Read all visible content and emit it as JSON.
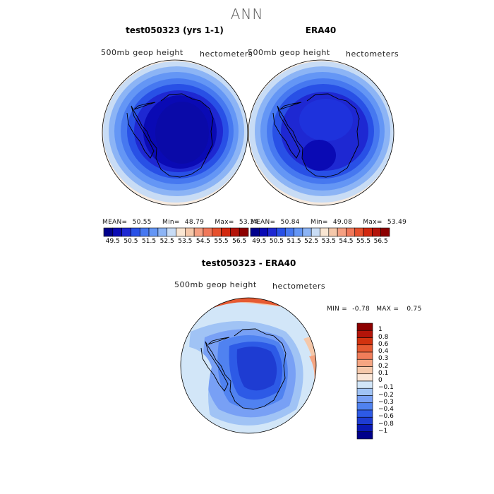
{
  "figure": {
    "main_title": "ANN",
    "panels": [
      {
        "title": "test050323 (yrs 1-1)",
        "field_label": "500mb geop height",
        "units_label": "hectometers",
        "mean_label": "MEAN=",
        "mean_value": "50.55",
        "min_label": "Min=",
        "min_value": "48.79",
        "max_label": "Max=",
        "max_value": "53.34"
      },
      {
        "title": "ERA40",
        "field_label": "500mb geop height",
        "units_label": "hectometers",
        "mean_label": "MEAN=",
        "mean_value": "50.84",
        "min_label": "Min=",
        "min_value": "49.08",
        "max_label": "Max=",
        "max_value": "53.49"
      }
    ],
    "diff_panel": {
      "title": "test050323 - ERA40",
      "field_label": "500mb geop height",
      "units_label": "hectometers",
      "min_label": "MIN =",
      "min_value": "-0.78",
      "max_label": "MAX =",
      "max_value": "0.75"
    }
  },
  "colorbar_top": {
    "colors": [
      "#00008b",
      "#0a0ab4",
      "#1e28d2",
      "#2850e6",
      "#4678f0",
      "#6496f5",
      "#8cb4f5",
      "#c8dcf5",
      "#fae6d2",
      "#f5c8aa",
      "#f5a082",
      "#f0785a",
      "#e6502d",
      "#d2280f",
      "#b4140a",
      "#8c0000"
    ],
    "labels": [
      "49.5",
      "50",
      "50.5",
      "51",
      "51.5",
      "52",
      "52.5",
      "53",
      "53.5",
      "54",
      "54.5",
      "55",
      "55.5",
      "56",
      "56.5"
    ]
  },
  "colorbar_diff": {
    "colors": [
      "#00008b",
      "#0a19b4",
      "#1e3cd2",
      "#2d5ae6",
      "#5082f0",
      "#78a0f5",
      "#a0c3f5",
      "#d2e6f8",
      "#fae6d7",
      "#f5c8aa",
      "#f5a582",
      "#f07d5a",
      "#e65a32",
      "#d2320f",
      "#b41409",
      "#8c0000"
    ],
    "labels": [
      "1",
      "0.8",
      "0.6",
      "0.4",
      "0.3",
      "0.2",
      "0.1",
      "0",
      "−0.1",
      "−0.2",
      "−0.3",
      "−0.4",
      "−0.6",
      "−0.8",
      "−1"
    ]
  }
}
